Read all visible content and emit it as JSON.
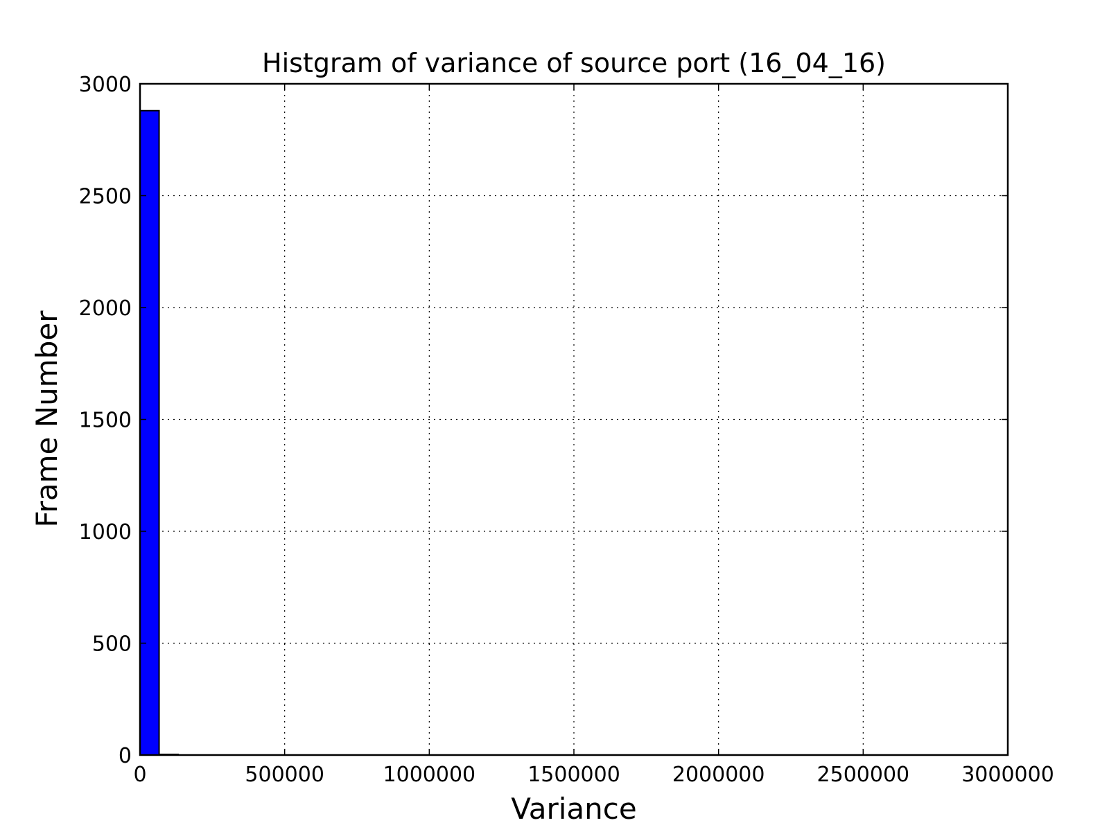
{
  "chart_data": {
    "type": "bar",
    "title": "Histgram of variance of source port (16_04_16)",
    "xlabel": "Variance",
    "ylabel": "Frame Number",
    "xlim": [
      0,
      3000000
    ],
    "ylim": [
      0,
      3000
    ],
    "x_ticks": [
      0,
      500000,
      1000000,
      1500000,
      2000000,
      2500000,
      3000000
    ],
    "x_tick_labels": [
      "0",
      "500000",
      "1000000",
      "1500000",
      "2000000",
      "2500000",
      "3000000"
    ],
    "y_ticks": [
      0,
      500,
      1000,
      1500,
      2000,
      2500,
      3000
    ],
    "y_tick_labels": [
      "0",
      "500",
      "1000",
      "1500",
      "2000",
      "2500",
      "3000"
    ],
    "grid": true,
    "bins": [
      {
        "x0": 0,
        "x1": 66000,
        "count": 2880
      },
      {
        "x0": 66000,
        "x1": 132000,
        "count": 3
      }
    ],
    "colors": {
      "bar_fill": "#0000ff",
      "bar_edge": "#000000",
      "grid": "#000000",
      "axes": "#000000"
    }
  }
}
